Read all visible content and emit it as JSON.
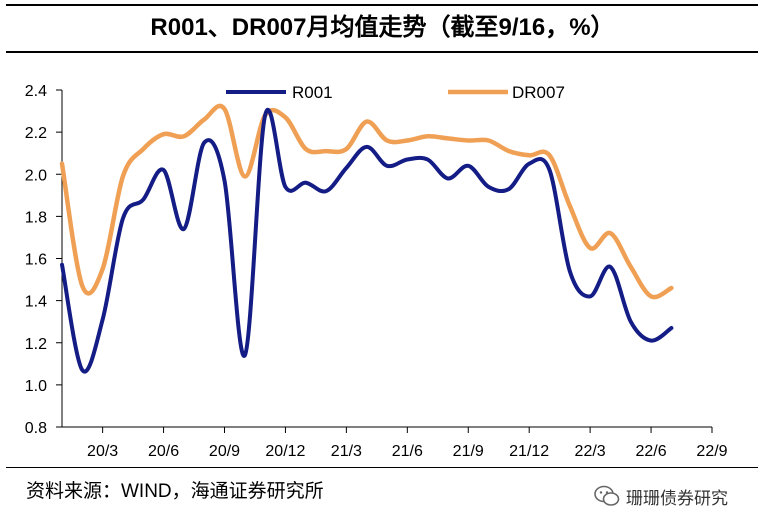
{
  "title": "R001、DR007月均值走势（截至9/16，%）",
  "source": "资料来源：WIND，海通证券研究所",
  "brand": "珊珊债券研究",
  "chart_data": {
    "type": "line",
    "x": [
      "20/1",
      "20/2",
      "20/3",
      "20/4",
      "20/5",
      "20/6",
      "20/7",
      "20/8",
      "20/9",
      "20/10",
      "20/11",
      "20/12",
      "21/1",
      "21/2",
      "21/3",
      "21/4",
      "21/5",
      "21/6",
      "21/7",
      "21/8",
      "21/9",
      "21/10",
      "21/11",
      "21/12",
      "22/1",
      "22/2",
      "22/3",
      "22/4",
      "22/5",
      "22/6",
      "22/7",
      "22/8",
      "22/9"
    ],
    "tick_labels": [
      "20/3",
      "20/6",
      "20/9",
      "20/12",
      "21/3",
      "21/6",
      "21/9",
      "21/12",
      "22/3",
      "22/6",
      "22/9"
    ],
    "tick_indices": [
      2,
      5,
      8,
      11,
      14,
      17,
      20,
      23,
      26,
      29,
      32
    ],
    "ylim": [
      0.8,
      2.4
    ],
    "yticks": [
      "2.4",
      "2.2",
      "2.0",
      "1.8",
      "1.6",
      "1.4",
      "1.2",
      "1.0",
      "0.8"
    ],
    "series": [
      {
        "name": "R001",
        "color": "#141c85",
        "values": [
          1.57,
          1.07,
          1.31,
          1.79,
          1.88,
          2.02,
          1.74,
          2.15,
          1.97,
          1.14,
          2.28,
          1.94,
          1.96,
          1.92,
          2.03,
          2.13,
          2.04,
          2.07,
          2.07,
          1.98,
          2.04,
          1.94,
          1.93,
          2.05,
          2.02,
          1.54,
          1.42,
          1.56,
          1.3,
          1.21,
          1.27,
          null,
          null
        ]
      },
      {
        "name": "DR007",
        "color": "#f0a055",
        "values": [
          2.05,
          1.47,
          1.55,
          1.99,
          2.12,
          2.19,
          2.18,
          2.26,
          2.31,
          1.99,
          2.28,
          2.27,
          2.12,
          2.11,
          2.12,
          2.25,
          2.16,
          2.16,
          2.18,
          2.17,
          2.16,
          2.16,
          2.11,
          2.09,
          2.09,
          1.85,
          1.65,
          1.72,
          1.56,
          1.42,
          1.46,
          null,
          null
        ]
      }
    ]
  }
}
